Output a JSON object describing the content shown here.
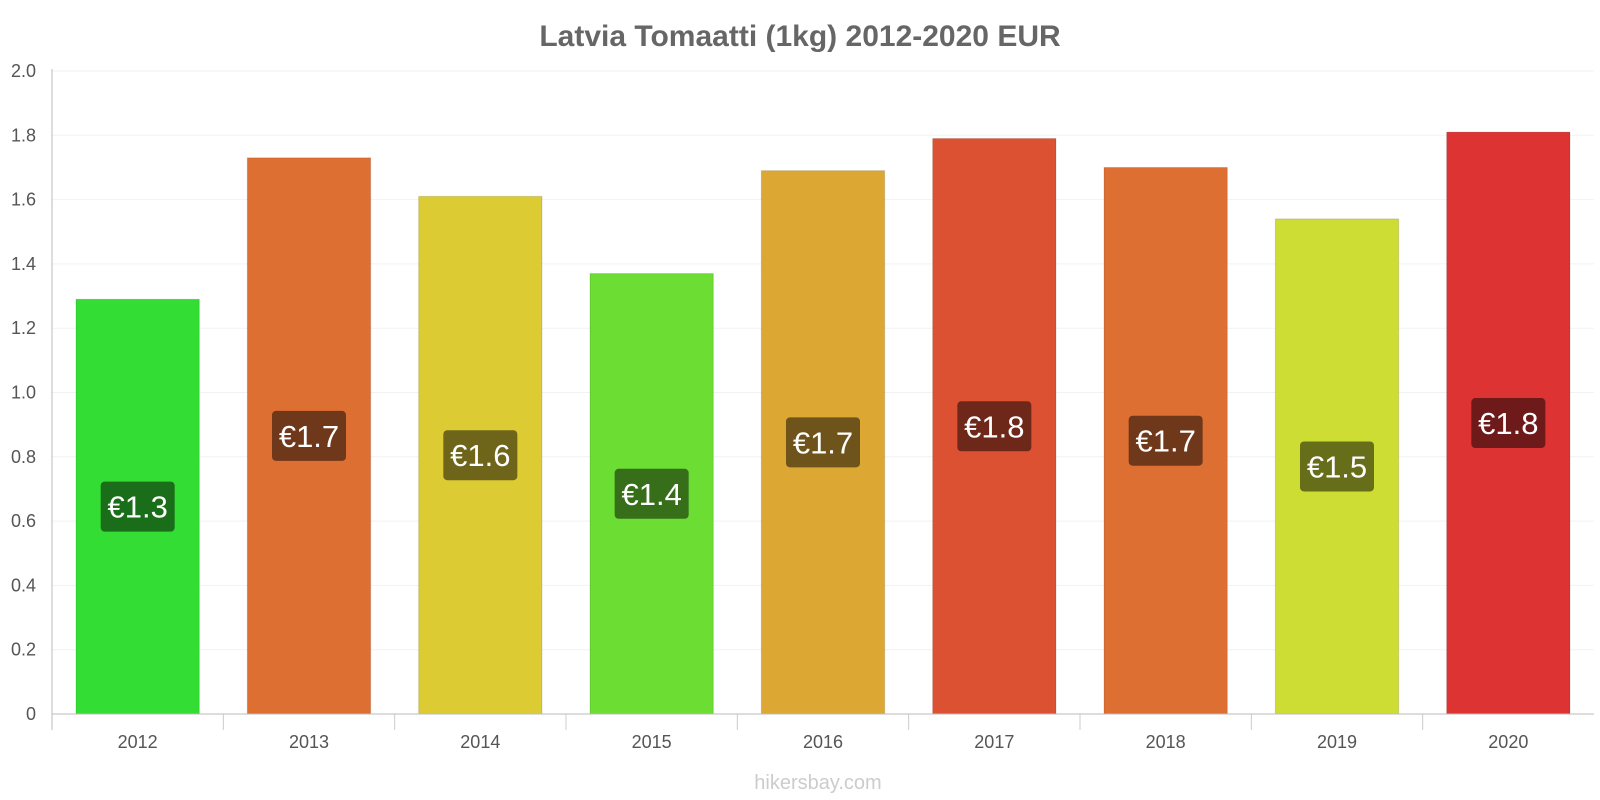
{
  "footer": "hikersbay.com",
  "chart_data": {
    "type": "bar",
    "title": "Latvia Tomaatti (1kg) 2012-2020 EUR",
    "xlabel": "",
    "ylabel": "",
    "ylim": [
      0,
      2.0
    ],
    "yticks": [
      "0",
      "0.2",
      "0.4",
      "0.6",
      "0.8",
      "1.0",
      "1.2",
      "1.4",
      "1.6",
      "1.8",
      "2.0"
    ],
    "categories": [
      "2012",
      "2013",
      "2014",
      "2015",
      "2016",
      "2017",
      "2018",
      "2019",
      "2020"
    ],
    "values": [
      1.29,
      1.73,
      1.61,
      1.37,
      1.69,
      1.79,
      1.7,
      1.54,
      1.81
    ],
    "data_labels": [
      "€1.3",
      "€1.7",
      "€1.6",
      "€1.4",
      "€1.7",
      "€1.8",
      "€1.7",
      "€1.5",
      "€1.8"
    ],
    "bar_colors": [
      "#33dd33",
      "#de6f33",
      "#dccb33",
      "#6bdd33",
      "#dca833",
      "#dd5133",
      "#de6f33",
      "#cedd33",
      "#dd3333"
    ],
    "label_bg_colors": [
      "#1a6e1a",
      "#6f381a",
      "#6e651a",
      "#366e1a",
      "#6e541a",
      "#6e281a",
      "#6f381a",
      "#676e1a",
      "#6e1a1a"
    ],
    "grid": true,
    "legend": "none"
  }
}
